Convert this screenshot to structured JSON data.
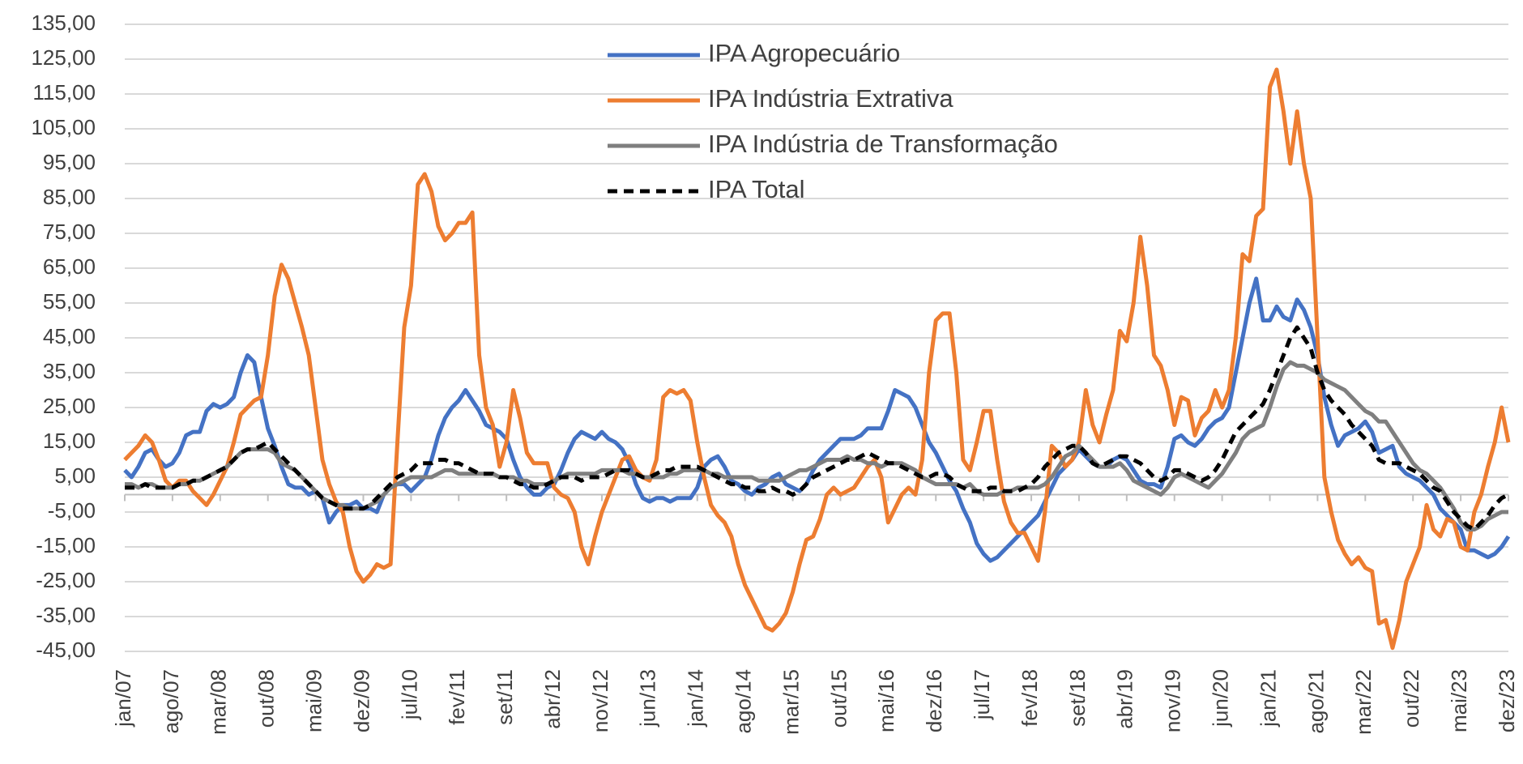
{
  "chart_data": {
    "type": "line",
    "categories": [
      "jan/07",
      null,
      null,
      null,
      null,
      null,
      null,
      "ago/07",
      null,
      null,
      null,
      null,
      null,
      null,
      "mar/08",
      null,
      null,
      null,
      null,
      null,
      null,
      "out/08",
      null,
      null,
      null,
      null,
      null,
      null,
      "mai/09",
      null,
      null,
      null,
      null,
      null,
      null,
      "dez/09",
      null,
      null,
      null,
      null,
      null,
      null,
      "jul/10",
      null,
      null,
      null,
      null,
      null,
      null,
      "fev/11",
      null,
      null,
      null,
      null,
      null,
      null,
      "set/11",
      null,
      null,
      null,
      null,
      null,
      null,
      "abr/12",
      null,
      null,
      null,
      null,
      null,
      null,
      "nov/12",
      null,
      null,
      null,
      null,
      null,
      null,
      "jun/13",
      null,
      null,
      null,
      null,
      null,
      null,
      "jan/14",
      null,
      null,
      null,
      null,
      null,
      null,
      "ago/14",
      null,
      null,
      null,
      null,
      null,
      null,
      "mar/15",
      null,
      null,
      null,
      null,
      null,
      null,
      "out/15",
      null,
      null,
      null,
      null,
      null,
      null,
      "mai/16",
      null,
      null,
      null,
      null,
      null,
      null,
      "dez/16",
      null,
      null,
      null,
      null,
      null,
      null,
      "jul/17",
      null,
      null,
      null,
      null,
      null,
      null,
      "fev/18",
      null,
      null,
      null,
      null,
      null,
      null,
      "set/18",
      null,
      null,
      null,
      null,
      null,
      null,
      "abr/19",
      null,
      null,
      null,
      null,
      null,
      null,
      "nov/19",
      null,
      null,
      null,
      null,
      null,
      null,
      "jun/20",
      null,
      null,
      null,
      null,
      null,
      null,
      "jan/21",
      null,
      null,
      null,
      null,
      null,
      null,
      "ago/21",
      null,
      null,
      null,
      null,
      null,
      null,
      "mar/22",
      null,
      null,
      null,
      null,
      null,
      null,
      "out/22",
      null,
      null,
      null,
      null,
      null,
      null,
      "mai/23",
      null,
      null,
      null,
      null,
      null,
      null,
      "dez/23"
    ],
    "series": [
      {
        "name": "IPA Agropecuário",
        "color": "#4472c4",
        "values": [
          7,
          5,
          8,
          12,
          13,
          10,
          8,
          9,
          12,
          17,
          18,
          18,
          24,
          26,
          25,
          26,
          28,
          35,
          40,
          38,
          28,
          19,
          14,
          8,
          3,
          2,
          2,
          0,
          1,
          -1,
          -8,
          -5,
          -3,
          -3,
          -2,
          -4,
          -4,
          -5,
          0,
          2,
          3,
          3,
          1,
          3,
          5,
          10,
          17,
          22,
          25,
          27,
          30,
          27,
          24,
          20,
          19,
          18,
          16,
          10,
          5,
          2,
          0,
          0,
          2,
          3,
          7,
          12,
          16,
          18,
          17,
          16,
          18,
          16,
          15,
          13,
          9,
          3,
          -1,
          -2,
          -1,
          -1,
          -2,
          -1,
          -1,
          -1,
          2,
          8,
          10,
          11,
          8,
          4,
          3,
          1,
          0,
          2,
          3,
          5,
          6,
          3,
          2,
          1,
          3,
          7,
          10,
          12,
          14,
          16,
          16,
          16,
          17,
          19,
          19,
          19,
          24,
          30,
          29,
          28,
          25,
          20,
          15,
          12,
          8,
          4,
          1,
          -4,
          -8,
          -14,
          -17,
          -19,
          -18,
          -16,
          -14,
          -12,
          -10,
          -8,
          -6,
          -2,
          2,
          6,
          8,
          10,
          13,
          11,
          9,
          8,
          8,
          10,
          11,
          10,
          7,
          4,
          3,
          3,
          2,
          8,
          16,
          17,
          15,
          14,
          16,
          19,
          21,
          22,
          25,
          35,
          45,
          55,
          62,
          50,
          50,
          54,
          51,
          50,
          56,
          53,
          48,
          40,
          28,
          20,
          14,
          17,
          18,
          19,
          21,
          18,
          12,
          13,
          14,
          8,
          6,
          5,
          4,
          2,
          0,
          -4,
          -6,
          -8,
          -10,
          -16,
          -16,
          -17,
          -18,
          -17,
          -15,
          -12
        ]
      },
      {
        "name": "IPA Indústria Extrativa",
        "color": "#ed7d31",
        "values": [
          10,
          12,
          14,
          17,
          15,
          10,
          4,
          2,
          4,
          4,
          1,
          -1,
          -3,
          0,
          4,
          8,
          15,
          23,
          25,
          27,
          28,
          40,
          57,
          66,
          62,
          55,
          48,
          40,
          25,
          10,
          3,
          -2,
          -5,
          -15,
          -22,
          -25,
          -23,
          -20,
          -21,
          -20,
          15,
          48,
          60,
          89,
          92,
          87,
          77,
          73,
          75,
          78,
          78,
          81,
          40,
          25,
          20,
          8,
          15,
          30,
          22,
          12,
          9,
          9,
          9,
          2,
          0,
          -1,
          -5,
          -15,
          -20,
          -12,
          -5,
          0,
          5,
          10,
          11,
          7,
          5,
          4,
          10,
          28,
          30,
          29,
          30,
          27,
          15,
          5,
          -3,
          -6,
          -8,
          -12,
          -20,
          -26,
          -30,
          -34,
          -38,
          -39,
          -37,
          -34,
          -28,
          -20,
          -13,
          -12,
          -7,
          0,
          2,
          0,
          1,
          2,
          5,
          8,
          10,
          5,
          -8,
          -4,
          0,
          2,
          0,
          10,
          35,
          50,
          52,
          52,
          35,
          10,
          7,
          15,
          24,
          24,
          10,
          -2,
          -8,
          -11,
          -11,
          -15,
          -19,
          -5,
          14,
          12,
          8,
          10,
          15,
          30,
          20,
          15,
          23,
          30,
          47,
          44,
          55,
          74,
          60,
          40,
          37,
          30,
          20,
          28,
          27,
          17,
          22,
          24,
          30,
          25,
          30,
          45,
          69,
          67,
          80,
          82,
          117,
          122,
          110,
          95,
          110,
          95,
          85,
          45,
          5,
          -5,
          -13,
          -17,
          -20,
          -18,
          -21,
          -22,
          -37,
          -36,
          -44,
          -36,
          -25,
          -20,
          -15,
          -3,
          -10,
          -12,
          -7,
          -8,
          -15,
          -16,
          -5,
          0,
          8,
          15,
          25,
          15
        ]
      },
      {
        "name": "IPA Indústria de Transformação",
        "color": "#7f7f7f",
        "values": [
          3,
          3,
          2,
          3,
          3,
          2,
          2,
          2,
          3,
          3,
          4,
          4,
          5,
          6,
          7,
          8,
          10,
          12,
          13,
          13,
          13,
          13,
          12,
          9,
          8,
          7,
          5,
          3,
          1,
          -1,
          -2,
          -3,
          -3,
          -4,
          -4,
          -4,
          -3,
          -2,
          0,
          2,
          3,
          4,
          5,
          5,
          5,
          5,
          6,
          7,
          7,
          6,
          6,
          6,
          6,
          6,
          6,
          5,
          5,
          5,
          4,
          4,
          3,
          3,
          3,
          4,
          5,
          6,
          6,
          6,
          6,
          6,
          7,
          7,
          7,
          7,
          6,
          6,
          5,
          5,
          5,
          5,
          6,
          6,
          7,
          7,
          7,
          7,
          6,
          6,
          5,
          5,
          5,
          5,
          5,
          4,
          4,
          4,
          4,
          5,
          6,
          7,
          7,
          8,
          9,
          10,
          10,
          10,
          11,
          10,
          10,
          9,
          9,
          8,
          9,
          9,
          9,
          8,
          7,
          5,
          4,
          3,
          3,
          3,
          3,
          2,
          3,
          1,
          0,
          0,
          0,
          1,
          1,
          2,
          2,
          2,
          2,
          3,
          5,
          8,
          11,
          12,
          14,
          12,
          10,
          8,
          8,
          8,
          9,
          7,
          4,
          3,
          2,
          1,
          0,
          2,
          5,
          6,
          5,
          4,
          3,
          2,
          4,
          6,
          9,
          12,
          16,
          18,
          19,
          20,
          25,
          31,
          36,
          38,
          37,
          37,
          36,
          35,
          33,
          32,
          31,
          30,
          28,
          26,
          24,
          23,
          21,
          21,
          18,
          15,
          12,
          9,
          7,
          6,
          4,
          2,
          -1,
          -4,
          -8,
          -10,
          -10,
          -9,
          -7,
          -6,
          -5,
          -5
        ]
      },
      {
        "name": "IPA Total",
        "color": "#000000",
        "dashed": true,
        "values": [
          2,
          2,
          2,
          3,
          2,
          2,
          2,
          2,
          3,
          3,
          4,
          4,
          5,
          6,
          7,
          8,
          10,
          12,
          13,
          13,
          14,
          15,
          13,
          11,
          9,
          7,
          5,
          3,
          1,
          -1,
          -2,
          -3,
          -4,
          -4,
          -4,
          -4,
          -3,
          -1,
          1,
          3,
          5,
          6,
          7,
          9,
          9,
          9,
          10,
          10,
          9,
          9,
          8,
          7,
          6,
          6,
          6,
          5,
          5,
          4,
          3,
          3,
          2,
          2,
          3,
          4,
          5,
          5,
          5,
          4,
          5,
          5,
          5,
          6,
          7,
          7,
          7,
          6,
          5,
          5,
          6,
          7,
          7,
          8,
          8,
          8,
          8,
          7,
          6,
          5,
          4,
          3,
          3,
          2,
          2,
          1,
          1,
          2,
          1,
          1,
          0,
          1,
          3,
          5,
          6,
          7,
          8,
          9,
          10,
          10,
          11,
          12,
          11,
          10,
          9,
          9,
          8,
          7,
          6,
          5,
          5,
          6,
          6,
          5,
          3,
          2,
          1,
          1,
          1,
          2,
          2,
          1,
          1,
          1,
          2,
          3,
          5,
          8,
          10,
          12,
          13,
          14,
          14,
          12,
          9,
          8,
          9,
          10,
          11,
          11,
          10,
          9,
          7,
          5,
          4,
          5,
          7,
          7,
          6,
          5,
          4,
          5,
          7,
          10,
          14,
          18,
          20,
          22,
          24,
          26,
          30,
          35,
          40,
          45,
          48,
          45,
          42,
          35,
          30,
          27,
          25,
          23,
          20,
          18,
          16,
          14,
          10,
          9,
          9,
          9,
          8,
          7,
          6,
          4,
          2,
          1,
          -2,
          -5,
          -7,
          -9,
          -10,
          -8,
          -6,
          -3,
          -1,
          0
        ]
      }
    ],
    "ylim": [
      -45,
      135
    ],
    "yticks": [
      {
        "value": -45,
        "label": "-45,00"
      },
      {
        "value": -35,
        "label": "-35,00"
      },
      {
        "value": -25,
        "label": "-25,00"
      },
      {
        "value": -15,
        "label": "-15,00"
      },
      {
        "value": -5,
        "label": "-5,00"
      },
      {
        "value": 5,
        "label": "5,00"
      },
      {
        "value": 15,
        "label": "15,00"
      },
      {
        "value": 25,
        "label": "25,00"
      },
      {
        "value": 35,
        "label": "35,00"
      },
      {
        "value": 45,
        "label": "45,00"
      },
      {
        "value": 55,
        "label": "55,00"
      },
      {
        "value": 65,
        "label": "65,00"
      },
      {
        "value": 75,
        "label": "75,00"
      },
      {
        "value": 85,
        "label": "85,00"
      },
      {
        "value": 95,
        "label": "95,00"
      },
      {
        "value": 105,
        "label": "105,00"
      },
      {
        "value": 115,
        "label": "115,00"
      },
      {
        "value": 125,
        "label": "125,00"
      },
      {
        "value": 135,
        "label": "135,00"
      }
    ],
    "grid": true,
    "legend": "top"
  }
}
